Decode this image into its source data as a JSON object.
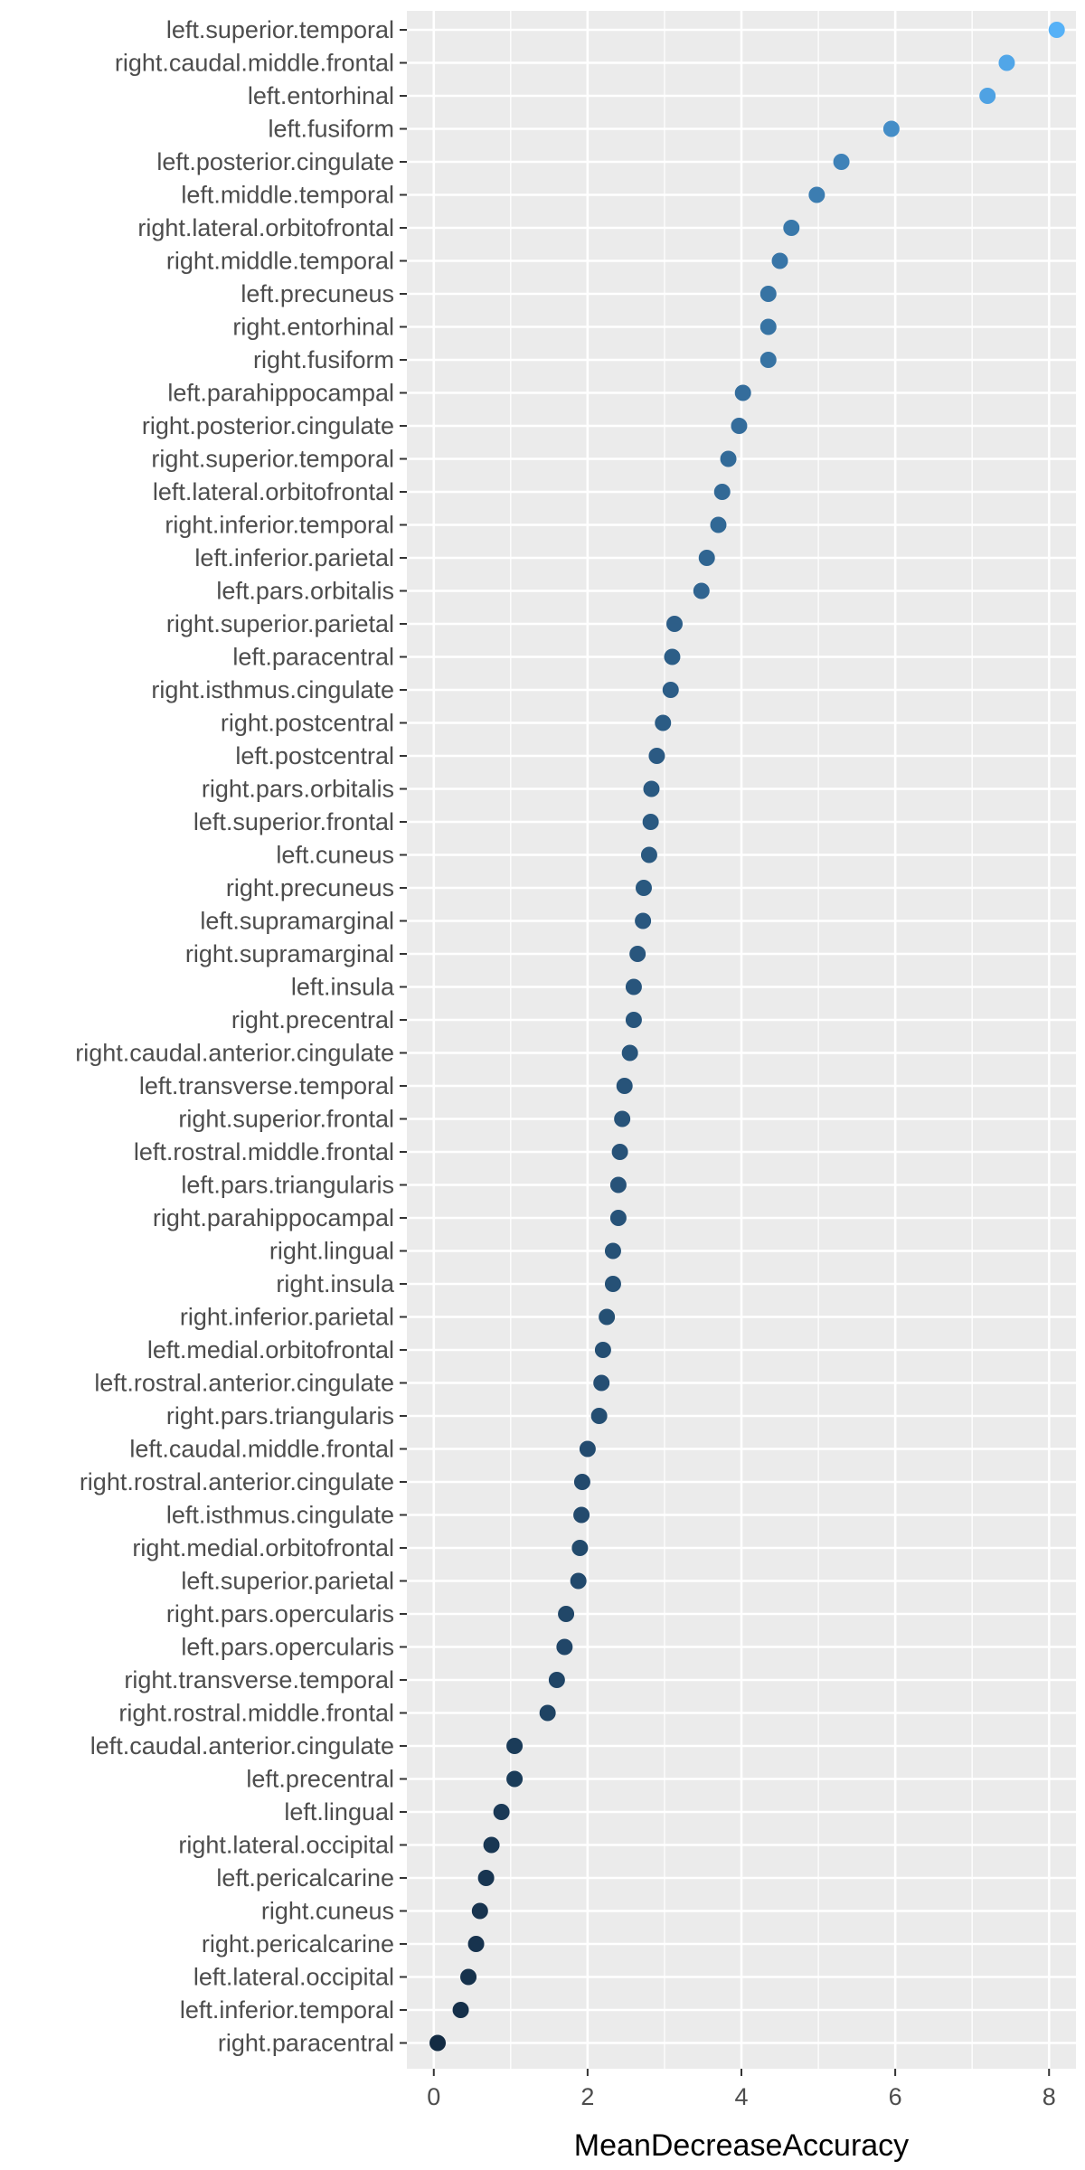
{
  "chart_data": {
    "type": "scatter",
    "xlabel": "MeanDecreaseAccuracy",
    "ylabel": "",
    "xlim": [
      -0.35,
      8.35
    ],
    "x_ticks": [
      0,
      2,
      4,
      6,
      8
    ],
    "x_tick_labels": [
      "0",
      "2",
      "4",
      "6",
      "8"
    ],
    "grid": true,
    "legend": "none",
    "colors": {
      "panel": "#ebebeb",
      "grid_major": "#ffffff",
      "point_low": "#132b43",
      "point_high": "#56b1f7",
      "axis_text": "#4d4d4d",
      "tick": "#333333"
    },
    "categories": [
      "left.superior.temporal",
      "right.caudal.middle.frontal",
      "left.entorhinal",
      "left.fusiform",
      "left.posterior.cingulate",
      "left.middle.temporal",
      "right.lateral.orbitofrontal",
      "right.middle.temporal",
      "left.precuneus",
      "right.entorhinal",
      "right.fusiform",
      "left.parahippocampal",
      "right.posterior.cingulate",
      "right.superior.temporal",
      "left.lateral.orbitofrontal",
      "right.inferior.temporal",
      "left.inferior.parietal",
      "left.pars.orbitalis",
      "right.superior.parietal",
      "left.paracentral",
      "right.isthmus.cingulate",
      "right.postcentral",
      "left.postcentral",
      "right.pars.orbitalis",
      "left.superior.frontal",
      "left.cuneus",
      "right.precuneus",
      "left.supramarginal",
      "right.supramarginal",
      "left.insula",
      "right.precentral",
      "right.caudal.anterior.cingulate",
      "left.transverse.temporal",
      "right.superior.frontal",
      "left.rostral.middle.frontal",
      "left.pars.triangularis",
      "right.parahippocampal",
      "right.lingual",
      "right.insula",
      "right.inferior.parietal",
      "left.medial.orbitofrontal",
      "left.rostral.anterior.cingulate",
      "right.pars.triangularis",
      "left.caudal.middle.frontal",
      "right.rostral.anterior.cingulate",
      "left.isthmus.cingulate",
      "right.medial.orbitofrontal",
      "left.superior.parietal",
      "right.pars.opercularis",
      "left.pars.opercularis",
      "right.transverse.temporal",
      "right.rostral.middle.frontal",
      "left.caudal.anterior.cingulate",
      "left.precentral",
      "left.lingual",
      "right.lateral.occipital",
      "left.pericalcarine",
      "right.cuneus",
      "right.pericalcarine",
      "left.lateral.occipital",
      "left.inferior.temporal",
      "right.paracentral"
    ],
    "values": [
      8.1,
      7.45,
      7.2,
      5.95,
      5.3,
      4.98,
      4.65,
      4.5,
      4.35,
      4.35,
      4.35,
      4.02,
      3.97,
      3.83,
      3.75,
      3.7,
      3.55,
      3.48,
      3.13,
      3.1,
      3.08,
      2.98,
      2.9,
      2.83,
      2.82,
      2.8,
      2.73,
      2.72,
      2.65,
      2.6,
      2.6,
      2.55,
      2.48,
      2.45,
      2.42,
      2.4,
      2.4,
      2.33,
      2.33,
      2.25,
      2.2,
      2.18,
      2.15,
      2.0,
      1.93,
      1.92,
      1.9,
      1.88,
      1.72,
      1.7,
      1.6,
      1.48,
      1.05,
      1.05,
      0.88,
      0.75,
      0.68,
      0.6,
      0.55,
      0.45,
      0.35,
      0.05
    ]
  }
}
